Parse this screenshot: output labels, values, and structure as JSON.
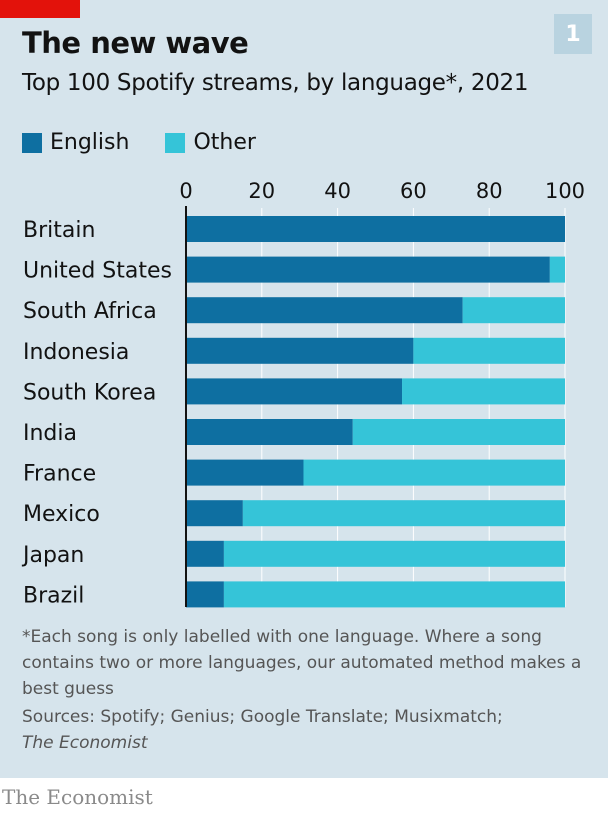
{
  "header": {
    "badge": "1",
    "title": "The new wave",
    "subtitle": "Top 100 Spotify streams, by language*, 2021"
  },
  "legend": {
    "english": "English",
    "other": "Other"
  },
  "chart_data": {
    "type": "bar",
    "orientation": "horizontal",
    "stacked": true,
    "categories": [
      "Britain",
      "United States",
      "South Africa",
      "Indonesia",
      "South Korea",
      "India",
      "France",
      "Mexico",
      "Japan",
      "Brazil"
    ],
    "series": [
      {
        "name": "English",
        "values": [
          100,
          96,
          73,
          60,
          57,
          44,
          31,
          15,
          10,
          10
        ],
        "color": "#0e6fa1"
      },
      {
        "name": "Other",
        "values": [
          0,
          4,
          27,
          40,
          43,
          56,
          69,
          85,
          90,
          90
        ],
        "color": "#35c4d8"
      }
    ],
    "xlim": [
      0,
      100
    ],
    "xticks": [
      "0",
      "20",
      "40",
      "60",
      "80",
      "100"
    ],
    "axis_position": "top",
    "gridlines": true
  },
  "footnote": "*Each song is only labelled with one language. Where a song contains two or more languages, our automated method makes a best guess",
  "sources": {
    "prefix": "Sources: Spotify; Genius; Google Translate; Musixmatch;",
    "last": "The Economist"
  },
  "brand": "The Economist",
  "colors": {
    "background": "#d6e4ec",
    "english": "#0e6fa1",
    "other": "#35c4d8",
    "gridline": "#ffffff",
    "accent": "#e3120b"
  }
}
